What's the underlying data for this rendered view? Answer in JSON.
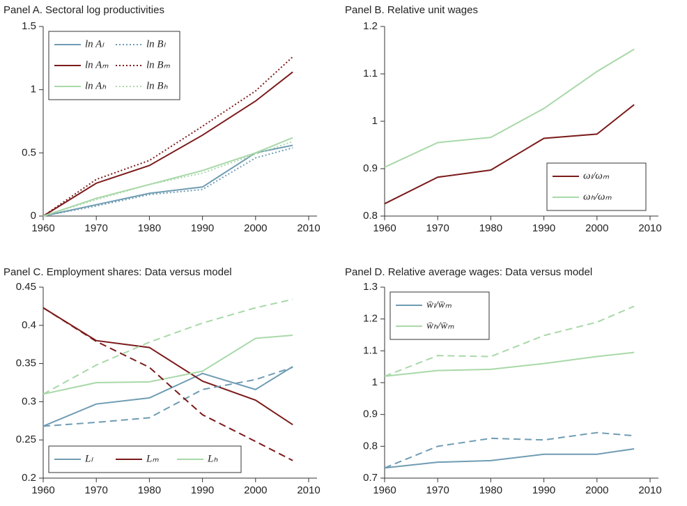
{
  "chart_data": [
    {
      "type": "line",
      "title": "Panel A. Sectoral log productivities",
      "x": [
        1960,
        1970,
        1980,
        1990,
        2000,
        2007
      ],
      "xlim": [
        1960,
        2010
      ],
      "xticks": [
        1960,
        1970,
        1980,
        1990,
        2000,
        2010
      ],
      "ylim": [
        0,
        1.5
      ],
      "yticks": [
        0,
        0.5,
        1,
        1.5
      ],
      "legend": "upper left",
      "legend_columns": 2,
      "series": [
        {
          "name": "ln Aₗ",
          "color": "#6f9cb3",
          "style": "solid",
          "values": [
            0,
            0.09,
            0.18,
            0.23,
            0.5,
            0.56
          ]
        },
        {
          "name": "ln Bₗ",
          "color": "#6f9cb3",
          "style": "dotted",
          "values": [
            0,
            0.08,
            0.17,
            0.21,
            0.46,
            0.54
          ]
        },
        {
          "name": "ln Aₘ",
          "color": "#7b1a1a",
          "style": "solid",
          "values": [
            0,
            0.26,
            0.4,
            0.64,
            0.91,
            1.14
          ]
        },
        {
          "name": "ln Bₘ",
          "color": "#7b1a1a",
          "style": "dotted",
          "values": [
            0,
            0.29,
            0.44,
            0.71,
            0.99,
            1.26
          ]
        },
        {
          "name": "ln Aₕ",
          "color": "#a8d8a8",
          "style": "solid",
          "values": [
            0,
            0.14,
            0.25,
            0.36,
            0.5,
            0.62
          ]
        },
        {
          "name": "ln Bₕ",
          "color": "#a8d8a8",
          "style": "dotted",
          "values": [
            0,
            0.13,
            0.25,
            0.34,
            0.49,
            0.59
          ]
        }
      ]
    },
    {
      "type": "line",
      "title": "Panel B. Relative unit wages",
      "x": [
        1960,
        1970,
        1980,
        1990,
        2000,
        2007
      ],
      "xlim": [
        1960,
        2010
      ],
      "xticks": [
        1960,
        1970,
        1980,
        1990,
        2000,
        2010
      ],
      "ylim": [
        0.8,
        1.2
      ],
      "yticks": [
        0.8,
        0.9,
        1,
        1.1,
        1.2
      ],
      "legend": "lower right",
      "legend_columns": 1,
      "series": [
        {
          "name": "ωₗ/ωₘ",
          "color": "#7b1a1a",
          "style": "solid",
          "values": [
            0.826,
            0.882,
            0.897,
            0.964,
            0.973,
            1.035
          ]
        },
        {
          "name": "ωₕ/ωₘ",
          "color": "#a8d8a8",
          "style": "solid",
          "values": [
            0.903,
            0.955,
            0.966,
            1.027,
            1.105,
            1.152
          ]
        }
      ]
    },
    {
      "type": "line",
      "title": "Panel C. Employment shares: Data versus model",
      "x": [
        1960,
        1970,
        1980,
        1990,
        2000,
        2007
      ],
      "xlim": [
        1960,
        2010
      ],
      "xticks": [
        1960,
        1970,
        1980,
        1990,
        2000,
        2010
      ],
      "ylim": [
        0.2,
        0.45
      ],
      "yticks": [
        0.2,
        0.25,
        0.3,
        0.35,
        0.4,
        0.45
      ],
      "legend": "lower left",
      "legend_columns": 3,
      "series": [
        {
          "name": "Lₗ",
          "color": "#6f9cb3",
          "style": "solid",
          "values": [
            0.268,
            0.297,
            0.305,
            0.337,
            0.316,
            0.346
          ]
        },
        {
          "name": "Lₘ",
          "color": "#7b1a1a",
          "style": "solid",
          "values": [
            0.423,
            0.38,
            0.371,
            0.327,
            0.302,
            0.27
          ]
        },
        {
          "name": "Lₕ",
          "color": "#a8d8a8",
          "style": "solid",
          "values": [
            0.31,
            0.325,
            0.326,
            0.34,
            0.383,
            0.387
          ]
        },
        {
          "color": "#6f9cb3",
          "style": "dashed",
          "values": [
            0.268,
            0.273,
            0.279,
            0.316,
            0.329,
            0.345
          ]
        },
        {
          "color": "#7b1a1a",
          "style": "dashed",
          "values": [
            0.423,
            0.379,
            0.345,
            0.283,
            0.248,
            0.223
          ]
        },
        {
          "color": "#a8d8a8",
          "style": "dashed",
          "values": [
            0.31,
            0.348,
            0.378,
            0.403,
            0.423,
            0.434
          ]
        }
      ]
    },
    {
      "type": "line",
      "title": "Panel D. Relative average wages: Data versus model",
      "x": [
        1960,
        1970,
        1980,
        1990,
        2000,
        2007
      ],
      "xlim": [
        1960,
        2010
      ],
      "xticks": [
        1960,
        1970,
        1980,
        1990,
        2000,
        2010
      ],
      "ylim": [
        0.7,
        1.3
      ],
      "yticks": [
        0.7,
        0.8,
        0.9,
        1,
        1.1,
        1.2,
        1.3
      ],
      "legend": "upper left",
      "legend_columns": 1,
      "series": [
        {
          "name": "w̄ₗ/w̄ₘ",
          "color": "#6f9cb3",
          "style": "solid",
          "values": [
            0.732,
            0.75,
            0.755,
            0.775,
            0.775,
            0.792
          ]
        },
        {
          "name": "w̄ₕ/w̄ₘ",
          "color": "#a8d8a8",
          "style": "solid",
          "values": [
            1.02,
            1.038,
            1.042,
            1.06,
            1.082,
            1.095
          ]
        },
        {
          "color": "#6f9cb3",
          "style": "dashed",
          "values": [
            0.732,
            0.8,
            0.825,
            0.82,
            0.843,
            0.833
          ]
        },
        {
          "color": "#a8d8a8",
          "style": "dashed",
          "values": [
            1.02,
            1.085,
            1.082,
            1.148,
            1.19,
            1.24
          ]
        }
      ]
    }
  ]
}
